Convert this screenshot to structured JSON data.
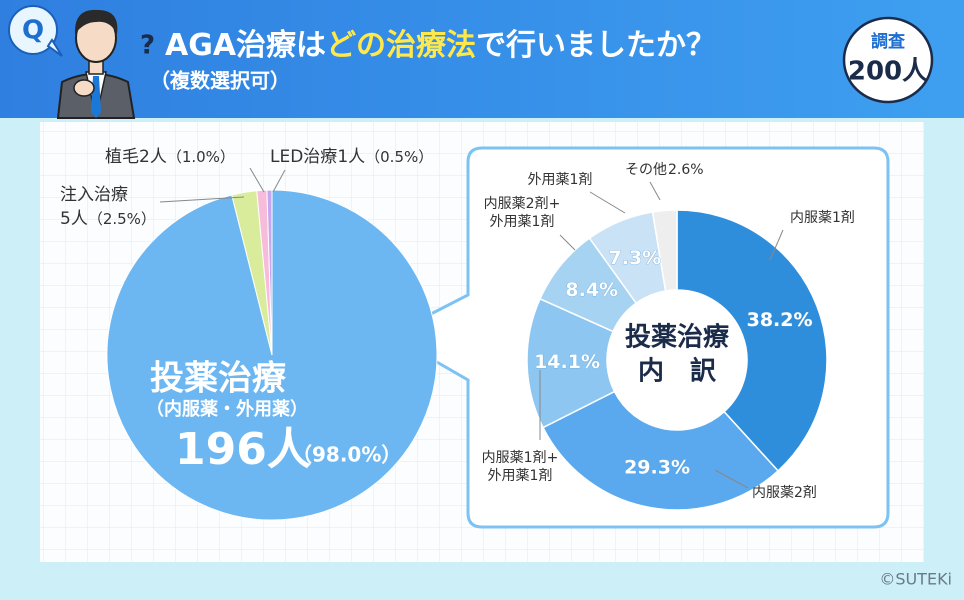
{
  "header": {
    "q": "Q",
    "mark": "?",
    "title_parts": [
      "AGA治療は",
      "どの治療法",
      "で行いましたか？"
    ],
    "subtitle": "（複数選択可）",
    "badge": [
      "調査",
      "200人"
    ]
  },
  "chart_data": [
    {
      "type": "pie",
      "categories": [
        "投薬治療",
        "注入治療",
        "植毛",
        "LED治療"
      ],
      "category_note": "（内服薬・外用薬）",
      "count_labels": [
        "196人",
        "5人",
        "2人",
        "1人"
      ],
      "values": [
        98.0,
        2.5,
        1.0,
        0.5
      ],
      "value_labels": [
        "（98.0%）",
        "（2.5%）",
        "（1.0%）",
        "（0.5%）"
      ],
      "colors": [
        "#6cb6f2",
        "#d9ec9c",
        "#f6bcd9",
        "#c5a6ef"
      ]
    },
    {
      "type": "donut",
      "center_label": [
        "投薬治療",
        "内　訳"
      ],
      "categories": [
        "内服薬1剤",
        "内服薬2剤",
        "内服薬1剤+外用薬1剤",
        "内服薬2剤+外用薬1剤",
        "外用薬1剤",
        "その他"
      ],
      "values": [
        38.2,
        29.3,
        14.1,
        8.4,
        7.3,
        2.6
      ],
      "value_labels": [
        "38.2%",
        "29.3%",
        "14.1%",
        "8.4%",
        "7.3%",
        "2.6%"
      ],
      "colors": [
        "#2f8edb",
        "#5aa9ee",
        "#8cc6f1",
        "#a7d3f3",
        "#c9e2f5",
        "#eeeeee"
      ]
    }
  ],
  "footer": {
    "copyright": "©SUTEKi"
  }
}
